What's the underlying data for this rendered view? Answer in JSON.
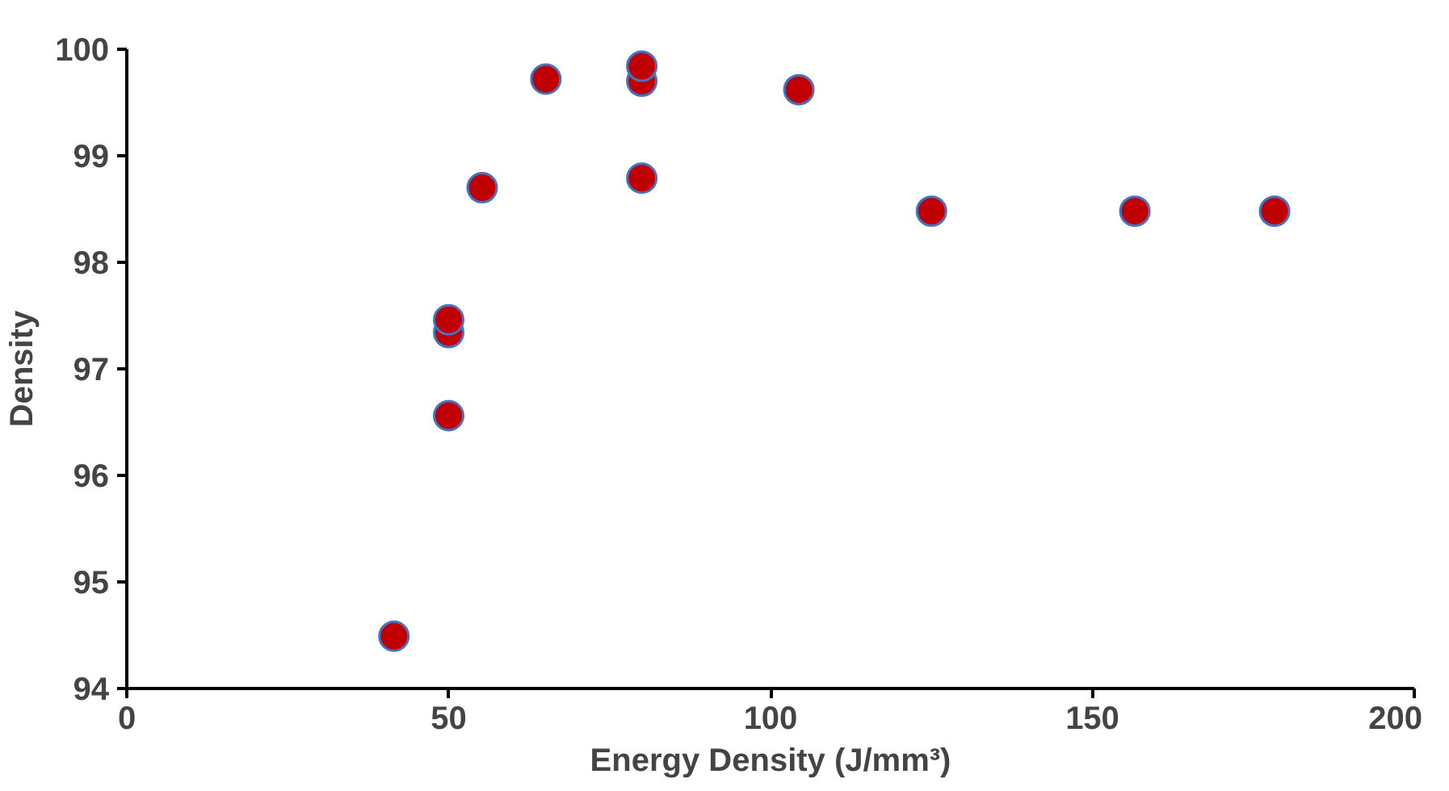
{
  "chart_data": {
    "type": "scatter",
    "xlabel": "Energy Density (J/mm³)",
    "ylabel": "Density",
    "x": [
      41.5,
      50,
      50,
      50,
      55.2,
      65.1,
      80,
      80,
      80,
      104.4,
      125,
      156.6,
      178.3
    ],
    "values": [
      94.49,
      96.56,
      97.34,
      97.46,
      98.7,
      99.72,
      98.79,
      99.7,
      99.84,
      99.62,
      98.48,
      98.48,
      98.48
    ],
    "color": "#c00000",
    "marker": "circle",
    "grid": false,
    "xlim": [
      0,
      200
    ],
    "ylim": [
      94,
      100
    ],
    "xticks": [
      0,
      50,
      100,
      150,
      200
    ],
    "yticks": [
      94,
      95,
      96,
      97,
      98,
      99,
      100
    ]
  }
}
